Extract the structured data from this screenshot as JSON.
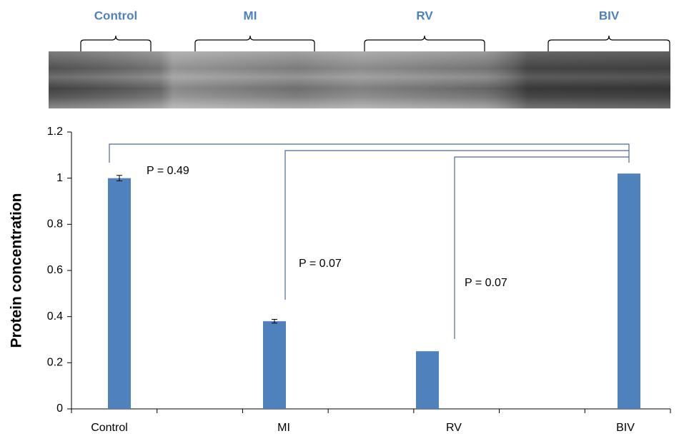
{
  "blot": {
    "labels": [
      "Control",
      "MI",
      "RV",
      "BIV"
    ]
  },
  "chart_data": {
    "type": "bar",
    "y_label": "Protein concentration",
    "categories": [
      "Control",
      "MI",
      "RV",
      "BIV"
    ],
    "values": [
      1.0,
      0.38,
      0.25,
      1.02
    ],
    "errors": [
      0.012,
      0.008,
      null,
      null
    ],
    "color": "#4f81bd",
    "ylim": [
      0,
      1.2
    ],
    "yticks": [
      0,
      0.2,
      0.4,
      0.6,
      0.8,
      1,
      1.2
    ],
    "annotations": [
      "P = 0.49",
      "P = 0.07",
      "P = 0.07"
    ]
  }
}
